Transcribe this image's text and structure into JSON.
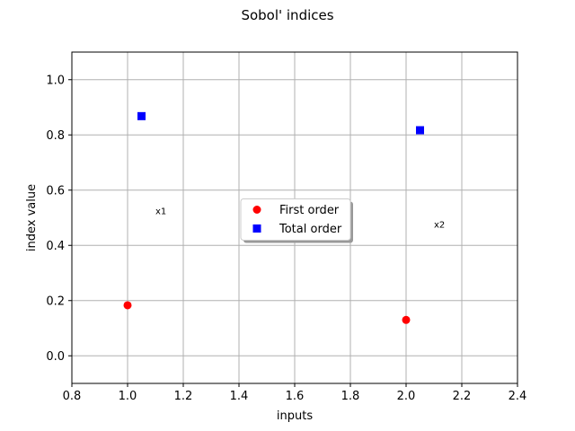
{
  "chart_data": {
    "type": "scatter",
    "title": "Sobol' indices",
    "xlabel": "inputs",
    "ylabel": "index value",
    "xlim": [
      0.8,
      2.4
    ],
    "ylim": [
      -0.1,
      1.1
    ],
    "xticks": [
      "0.8",
      "1.0",
      "1.2",
      "1.4",
      "1.6",
      "1.8",
      "2.0",
      "2.2",
      "2.4"
    ],
    "yticks": [
      "0.0",
      "0.2",
      "0.4",
      "0.6",
      "0.8",
      "1.0"
    ],
    "grid": true,
    "legend_position": "center",
    "series": [
      {
        "name": "First order",
        "marker": "circle",
        "color": "#ff0000",
        "points": [
          {
            "x": 1.0,
            "y": 0.183
          },
          {
            "x": 2.0,
            "y": 0.13
          }
        ]
      },
      {
        "name": "Total order",
        "marker": "square",
        "color": "#0000ff",
        "points": [
          {
            "x": 1.05,
            "y": 0.868
          },
          {
            "x": 2.05,
            "y": 0.817
          }
        ]
      }
    ],
    "annotations": [
      {
        "text": "x1",
        "x": 1.1,
        "y": 0.525
      },
      {
        "text": "x2",
        "x": 2.1,
        "y": 0.475
      }
    ]
  }
}
